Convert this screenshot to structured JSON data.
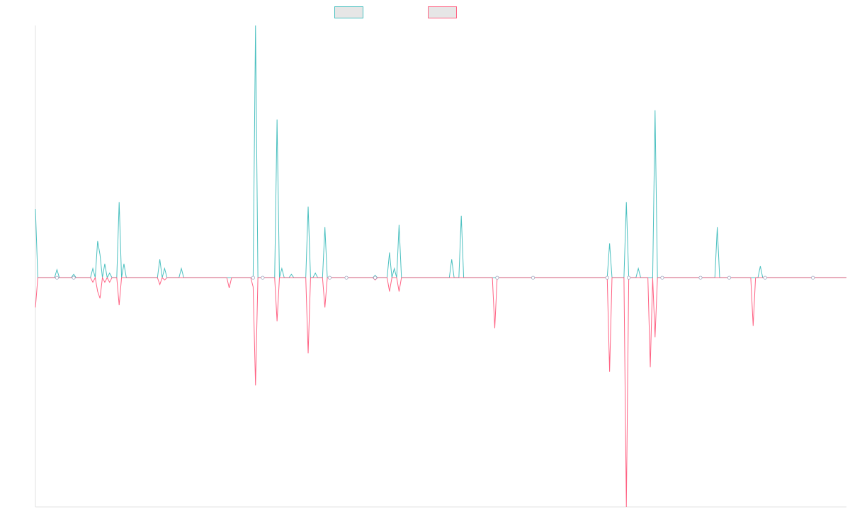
{
  "chart_data": {
    "type": "line",
    "title": "",
    "xlabel": "",
    "ylabel": "",
    "grid": false,
    "legend_position": "top-center",
    "ylim": [
      -1.0,
      1.1
    ],
    "x_count": 340,
    "baseline": 0,
    "series": [
      {
        "color": "#4bc0c0",
        "fill": "#e6e6e6",
        "spikes": [
          [
            0,
            0.3
          ],
          [
            9,
            0.035
          ],
          [
            16,
            0.015
          ],
          [
            24,
            0.04
          ],
          [
            26,
            0.16
          ],
          [
            27,
            0.1
          ],
          [
            29,
            0.06
          ],
          [
            31,
            0.02
          ],
          [
            35,
            0.33
          ],
          [
            37,
            0.06
          ],
          [
            52,
            0.08
          ],
          [
            54,
            0.04
          ],
          [
            61,
            0.04
          ],
          [
            92,
            1.1
          ],
          [
            101,
            0.69
          ],
          [
            103,
            0.04
          ],
          [
            107,
            0.015
          ],
          [
            114,
            0.31
          ],
          [
            117,
            0.02
          ],
          [
            121,
            0.22
          ],
          [
            142,
            0.01
          ],
          [
            148,
            0.11
          ],
          [
            150,
            0.04
          ],
          [
            152,
            0.23
          ],
          [
            174,
            0.08
          ],
          [
            178,
            0.27
          ],
          [
            240,
            0.15
          ],
          [
            247,
            0.33
          ],
          [
            252,
            0.04
          ],
          [
            259,
            0.73
          ],
          [
            285,
            0.22
          ],
          [
            303,
            0.05
          ]
        ]
      },
      {
        "color": "#ff6384",
        "fill": "#e6e6e6",
        "spikes": [
          [
            0,
            -0.13
          ],
          [
            24,
            -0.02
          ],
          [
            26,
            -0.06
          ],
          [
            27,
            -0.09
          ],
          [
            29,
            -0.02
          ],
          [
            31,
            -0.02
          ],
          [
            35,
            -0.12
          ],
          [
            52,
            -0.03
          ],
          [
            54,
            -0.01
          ],
          [
            81,
            -0.045
          ],
          [
            91,
            -0.04
          ],
          [
            92,
            -0.47
          ],
          [
            101,
            -0.19
          ],
          [
            114,
            -0.33
          ],
          [
            121,
            -0.13
          ],
          [
            142,
            -0.01
          ],
          [
            148,
            -0.06
          ],
          [
            152,
            -0.06
          ],
          [
            192,
            -0.22
          ],
          [
            240,
            -0.41
          ],
          [
            247,
            -1.0
          ],
          [
            257,
            -0.39
          ],
          [
            259,
            -0.26
          ],
          [
            300,
            -0.21
          ]
        ]
      }
    ],
    "markers": [
      9,
      16,
      91,
      95,
      123,
      130,
      142,
      193,
      208,
      239,
      248,
      262,
      278,
      290,
      305,
      325
    ]
  }
}
